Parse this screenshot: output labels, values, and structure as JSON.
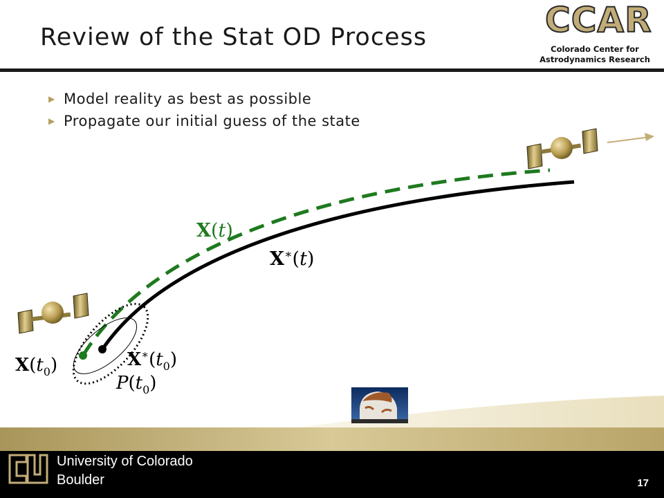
{
  "slide": {
    "title": "Review of the Stat OD Process",
    "bullets": [
      "Model reality as best as possible",
      "Propagate our initial guess of the state"
    ],
    "bullet_marker": "▶"
  },
  "logo": {
    "word": "CCAR",
    "line1": "Colorado Center for",
    "line2": "Astrodynamics Research"
  },
  "diagram": {
    "label_true_traj": "X(t)",
    "label_ref_traj": "X*(t)",
    "label_true_initial": "X(t0)",
    "label_ref_initial": "X*(t0)",
    "label_covariance": "P(t0)"
  },
  "footer": {
    "university_line1": "University of Colorado",
    "university_line2": "Boulder",
    "page_number": "17"
  },
  "colors": {
    "true_trajectory": "#1e7a1e",
    "reference_trajectory": "#000000",
    "gold": "#c2ad78",
    "footer_bg": "#000000"
  }
}
